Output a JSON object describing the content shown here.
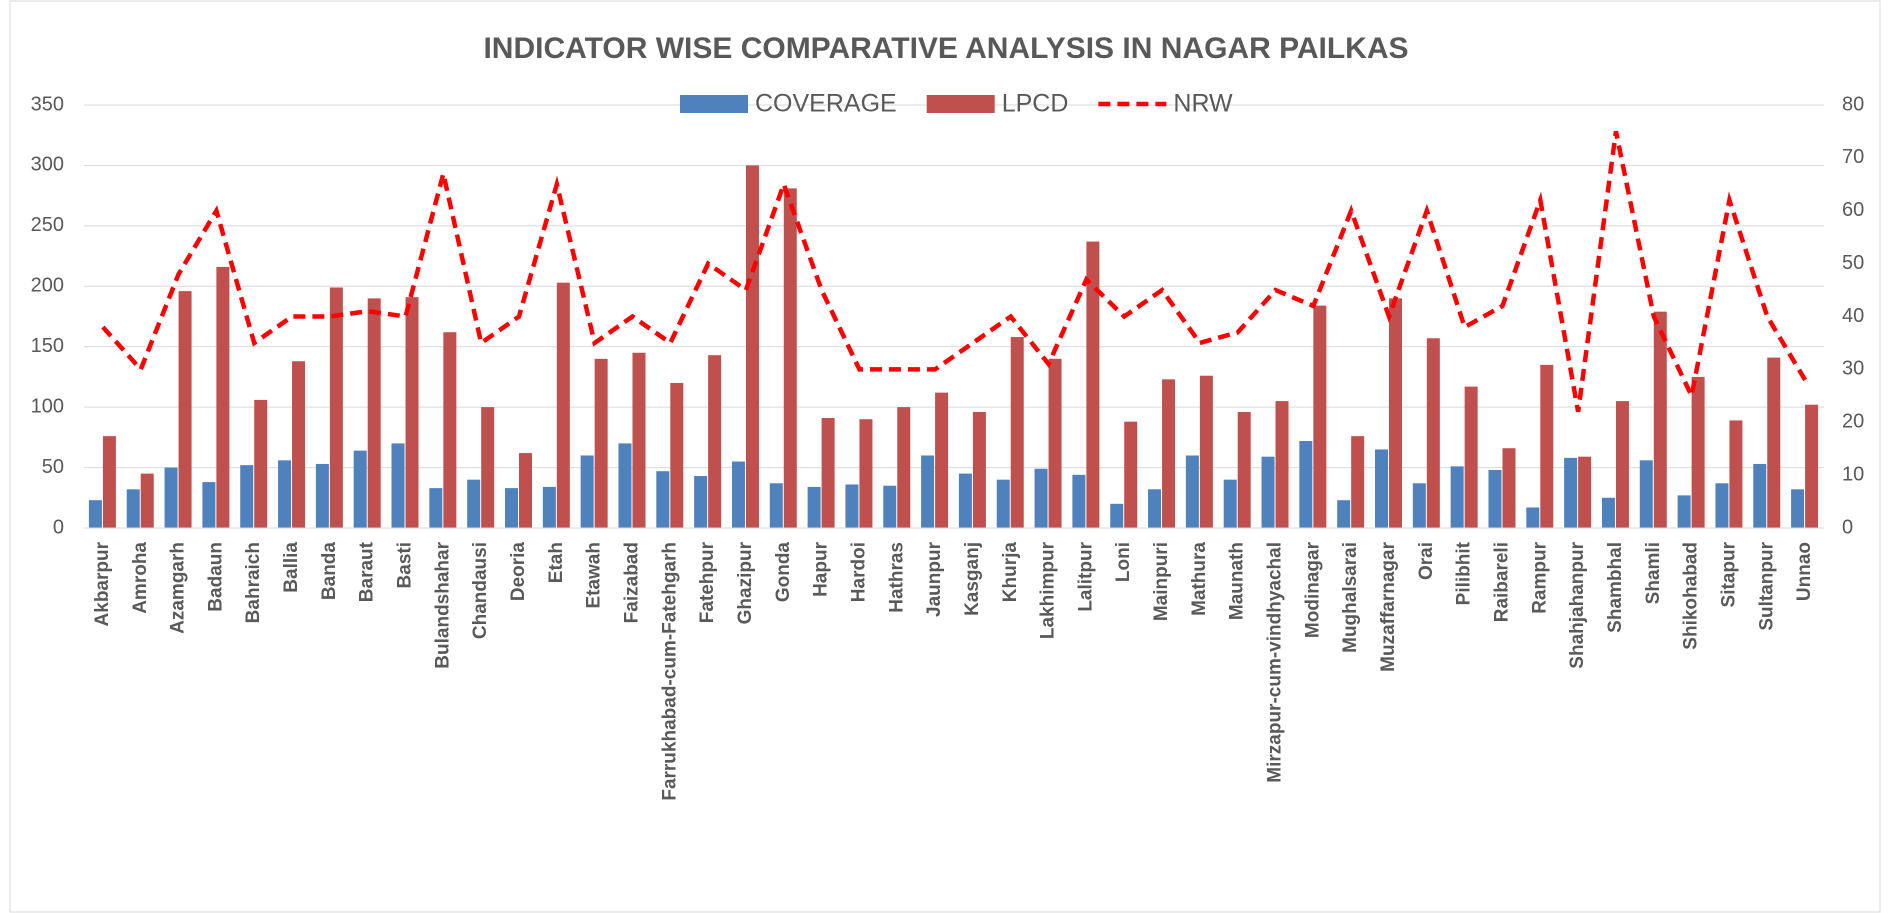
{
  "chart_data": {
    "type": "bar",
    "title": "INDICATOR WISE COMPARATIVE ANALYSIS IN NAGAR PAILKAS",
    "categories": [
      "Akbarpur",
      "Amroha",
      "Azamgarh",
      "Badaun",
      "Bahraich",
      "Ballia",
      "Banda",
      "Baraut",
      "Basti",
      "Bulandshahar",
      "Chandausi",
      "Deoria",
      "Etah",
      "Etawah",
      "Faizabad",
      "Farrukhabad-cum-Fatehgarh",
      "Fatehpur",
      "Ghazipur",
      "Gonda",
      "Hapur",
      "Hardoi",
      "Hathras",
      "Jaunpur",
      "Kasganj",
      "Khurja",
      "Lakhimpur",
      "Lalitpur",
      "Loni",
      "Mainpuri",
      "Mathura",
      "Maunath",
      "Mirzapur-cum-vindhyachal",
      "Modinagar",
      "Mughalsarai",
      "Muzaffarnagar",
      "Orai",
      "Pilibhit",
      "Raibareli",
      "Rampur",
      "Shahjahanpur",
      "Shambhal",
      "Shamli",
      "Shikohabad",
      "Sitapur",
      "Sultanpur",
      "Unnao"
    ],
    "series": [
      {
        "name": "COVERAGE",
        "color": "#4f81bd",
        "type": "bar",
        "values": [
          23,
          32,
          50,
          38,
          52,
          56,
          53,
          64,
          70,
          33,
          40,
          33,
          34,
          60,
          70,
          47,
          43,
          55,
          37,
          34,
          36,
          35,
          60,
          45,
          40,
          49,
          44,
          20,
          32,
          60,
          40,
          59,
          72,
          23,
          65,
          37,
          51,
          48,
          17,
          58,
          25,
          56,
          27,
          37,
          53,
          32
        ]
      },
      {
        "name": "LPCD",
        "color": "#c0504d",
        "type": "bar",
        "values": [
          76,
          45,
          196,
          216,
          106,
          138,
          199,
          190,
          191,
          162,
          100,
          62,
          203,
          140,
          145,
          120,
          143,
          300,
          281,
          91,
          90,
          100,
          112,
          96,
          158,
          140,
          237,
          88,
          123,
          126,
          96,
          105,
          184,
          76,
          190,
          157,
          117,
          66,
          135,
          59,
          105,
          179,
          125,
          89,
          141,
          102
        ]
      },
      {
        "name": "NRW",
        "color": "#ff0000",
        "type": "line",
        "axis": "y2",
        "values": [
          38,
          30,
          48,
          60,
          35,
          40,
          40,
          41,
          40,
          67,
          35,
          40,
          65,
          35,
          40,
          35,
          50,
          45,
          65,
          45,
          30,
          30,
          30,
          35,
          40,
          31,
          47,
          40,
          45,
          35,
          37,
          45,
          42,
          60,
          40,
          60,
          38,
          42,
          62,
          22,
          75,
          40,
          25,
          62,
          40,
          28
        ]
      }
    ],
    "ylim": [
      0,
      350
    ],
    "yticks": [
      0,
      50,
      100,
      150,
      200,
      250,
      300,
      350
    ],
    "y2lim": [
      0,
      80
    ],
    "y2ticks": [
      0,
      10,
      20,
      30,
      40,
      50,
      60,
      70,
      80
    ],
    "grid": true,
    "legend": "top"
  }
}
